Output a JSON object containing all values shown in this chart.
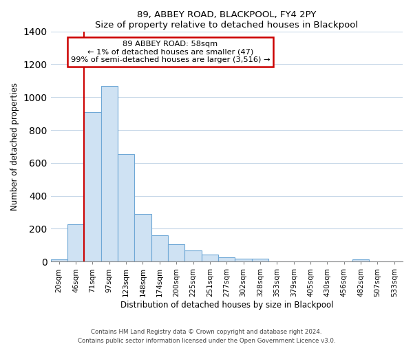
{
  "title": "89, ABBEY ROAD, BLACKPOOL, FY4 2PY",
  "subtitle": "Size of property relative to detached houses in Blackpool",
  "xlabel": "Distribution of detached houses by size in Blackpool",
  "ylabel": "Number of detached properties",
  "bar_labels": [
    "20sqm",
    "46sqm",
    "71sqm",
    "97sqm",
    "123sqm",
    "148sqm",
    "174sqm",
    "200sqm",
    "225sqm",
    "251sqm",
    "277sqm",
    "302sqm",
    "328sqm",
    "353sqm",
    "379sqm",
    "405sqm",
    "430sqm",
    "456sqm",
    "482sqm",
    "507sqm",
    "533sqm"
  ],
  "bar_values": [
    15,
    228,
    910,
    1068,
    652,
    288,
    160,
    107,
    70,
    42,
    25,
    18,
    20,
    0,
    0,
    0,
    0,
    0,
    12,
    0,
    0
  ],
  "bar_color": "#cfe2f3",
  "bar_edge_color": "#6fa8d6",
  "ylim": [
    0,
    1400
  ],
  "yticks": [
    0,
    200,
    400,
    600,
    800,
    1000,
    1200,
    1400
  ],
  "annotation_title": "89 ABBEY ROAD: 58sqm",
  "annotation_line1": "← 1% of detached houses are smaller (47)",
  "annotation_line2": "99% of semi-detached houses are larger (3,516) →",
  "annotation_box_color": "#ffffff",
  "annotation_box_edge": "#cc0000",
  "property_line_color": "#cc0000",
  "grid_color": "#c8d8e8",
  "footer_line1": "Contains HM Land Registry data © Crown copyright and database right 2024.",
  "footer_line2": "Contains public sector information licensed under the Open Government Licence v3.0."
}
